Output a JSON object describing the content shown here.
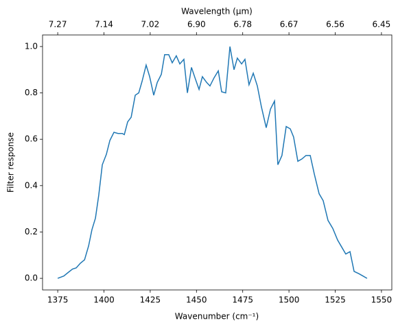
{
  "chart_data": {
    "type": "line",
    "xlabel": "Wavenumber (cm⁻¹)",
    "ylabel": "Filter response",
    "x2label": "Wavelength (μm)",
    "xlim": [
      1366.8,
      1555.6
    ],
    "ylim": [
      -0.05,
      1.05
    ],
    "xticks": [
      1375,
      1400,
      1425,
      1450,
      1475,
      1500,
      1525,
      1550
    ],
    "x2ticks": [
      {
        "value": 1375,
        "label": "7.27"
      },
      {
        "value": 1400,
        "label": "7.14"
      },
      {
        "value": 1425,
        "label": "7.02"
      },
      {
        "value": 1450,
        "label": "6.90"
      },
      {
        "value": 1475,
        "label": "6.78"
      },
      {
        "value": 1500,
        "label": "6.67"
      },
      {
        "value": 1525,
        "label": "6.56"
      },
      {
        "value": 1550,
        "label": "6.45"
      }
    ],
    "yticks": [
      {
        "value": 0,
        "label": "0.0"
      },
      0.2,
      0.4,
      0.6,
      0.8,
      {
        "value": 1,
        "label": "1.0"
      }
    ],
    "series": [
      {
        "color": "#1f77b4",
        "x": [
          1375,
          1378.3,
          1380.6,
          1383,
          1385,
          1387.2,
          1389.5,
          1391.7,
          1393.5,
          1395.4,
          1397.2,
          1399.1,
          1401.3,
          1403.2,
          1405.4,
          1407.6,
          1409.9,
          1411,
          1412.8,
          1414.7,
          1416.9,
          1418.8,
          1420.6,
          1422.8,
          1424.7,
          1426.9,
          1428.8,
          1431,
          1432.8,
          1435,
          1436.9,
          1439.1,
          1441,
          1443.2,
          1445.1,
          1447.3,
          1449.2,
          1451.4,
          1453.2,
          1455.5,
          1457.3,
          1459.5,
          1461.8,
          1463.6,
          1465.8,
          1468.1,
          1470.3,
          1472.1,
          1474.4,
          1476.2,
          1478.4,
          1480.7,
          1482.9,
          1485.1,
          1487.7,
          1490,
          1492.2,
          1494,
          1496.2,
          1498.5,
          1500.7,
          1502.5,
          1504.8,
          1507,
          1509.2,
          1511.5,
          1513.7,
          1516.3,
          1518.5,
          1521.1,
          1523.7,
          1526.3,
          1528.5,
          1530.7,
          1533,
          1535.2,
          1537.8,
          1540,
          1542.2
        ],
        "values": [
          0,
          0.01,
          0.025,
          0.04,
          0.045,
          0.065,
          0.08,
          0.14,
          0.21,
          0.26,
          0.36,
          0.49,
          0.535,
          0.595,
          0.63,
          0.625,
          0.625,
          0.62,
          0.675,
          0.695,
          0.79,
          0.8,
          0.85,
          0.92,
          0.87,
          0.79,
          0.845,
          0.88,
          0.965,
          0.965,
          0.93,
          0.96,
          0.925,
          0.945,
          0.8,
          0.91,
          0.865,
          0.815,
          0.87,
          0.845,
          0.83,
          0.865,
          0.895,
          0.805,
          0.8,
          1,
          0.9,
          0.95,
          0.925,
          0.945,
          0.835,
          0.885,
          0.83,
          0.74,
          0.65,
          0.73,
          0.765,
          0.49,
          0.53,
          0.655,
          0.645,
          0.61,
          0.505,
          0.515,
          0.53,
          0.53,
          0.45,
          0.365,
          0.335,
          0.25,
          0.215,
          0.165,
          0.135,
          0.105,
          0.115,
          0.03,
          0.02,
          0.01,
          0
        ]
      }
    ]
  }
}
